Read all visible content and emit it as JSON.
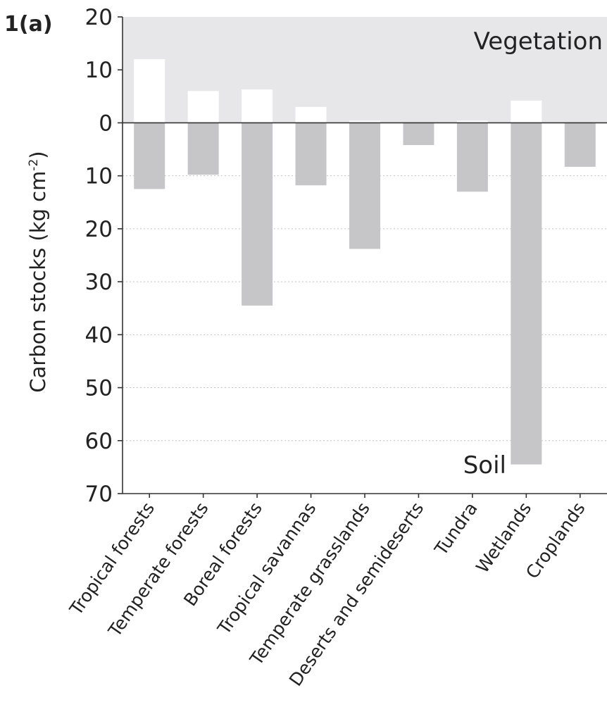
{
  "chart_data": {
    "type": "bar",
    "panel_label": "1(a)",
    "ylabel": "Carbon stocks (kg cm",
    "ylabel_exponent": "-2",
    "ylabel_close": ")",
    "ylim": [
      -70,
      20
    ],
    "yticks": [
      20,
      10,
      0,
      -10,
      -20,
      -30,
      -40,
      -50,
      -60,
      -70
    ],
    "ytick_labels": [
      "20",
      "10",
      "0",
      "10",
      "20",
      "30",
      "40",
      "50",
      "60",
      "70"
    ],
    "grid": "dotted horizontal lines at soil tick marks",
    "categories": [
      "Tropical forests",
      "Temperate forests",
      "Boreal forests",
      "Tropical savannas",
      "Temperate grasslands",
      "Deserts and semideserts",
      "Tundra",
      "Wetlands",
      "Croplands"
    ],
    "series": [
      {
        "name": "Vegetation",
        "color": "#ffffff",
        "values": [
          12,
          6,
          6.3,
          3,
          0.4,
          0,
          0.4,
          4.2,
          0
        ]
      },
      {
        "name": "Soil",
        "color": "#c6c6c8",
        "values": [
          -12.5,
          -9.8,
          -34.5,
          -11.8,
          -23.8,
          -4.2,
          -13,
          -64.5,
          -8.3
        ]
      }
    ],
    "annotations": {
      "vegetation": "Vegetation",
      "soil": "Soil"
    },
    "vegetation_region_color": "#e7e7e9",
    "soil_bar_color": "#c6c6c8"
  }
}
